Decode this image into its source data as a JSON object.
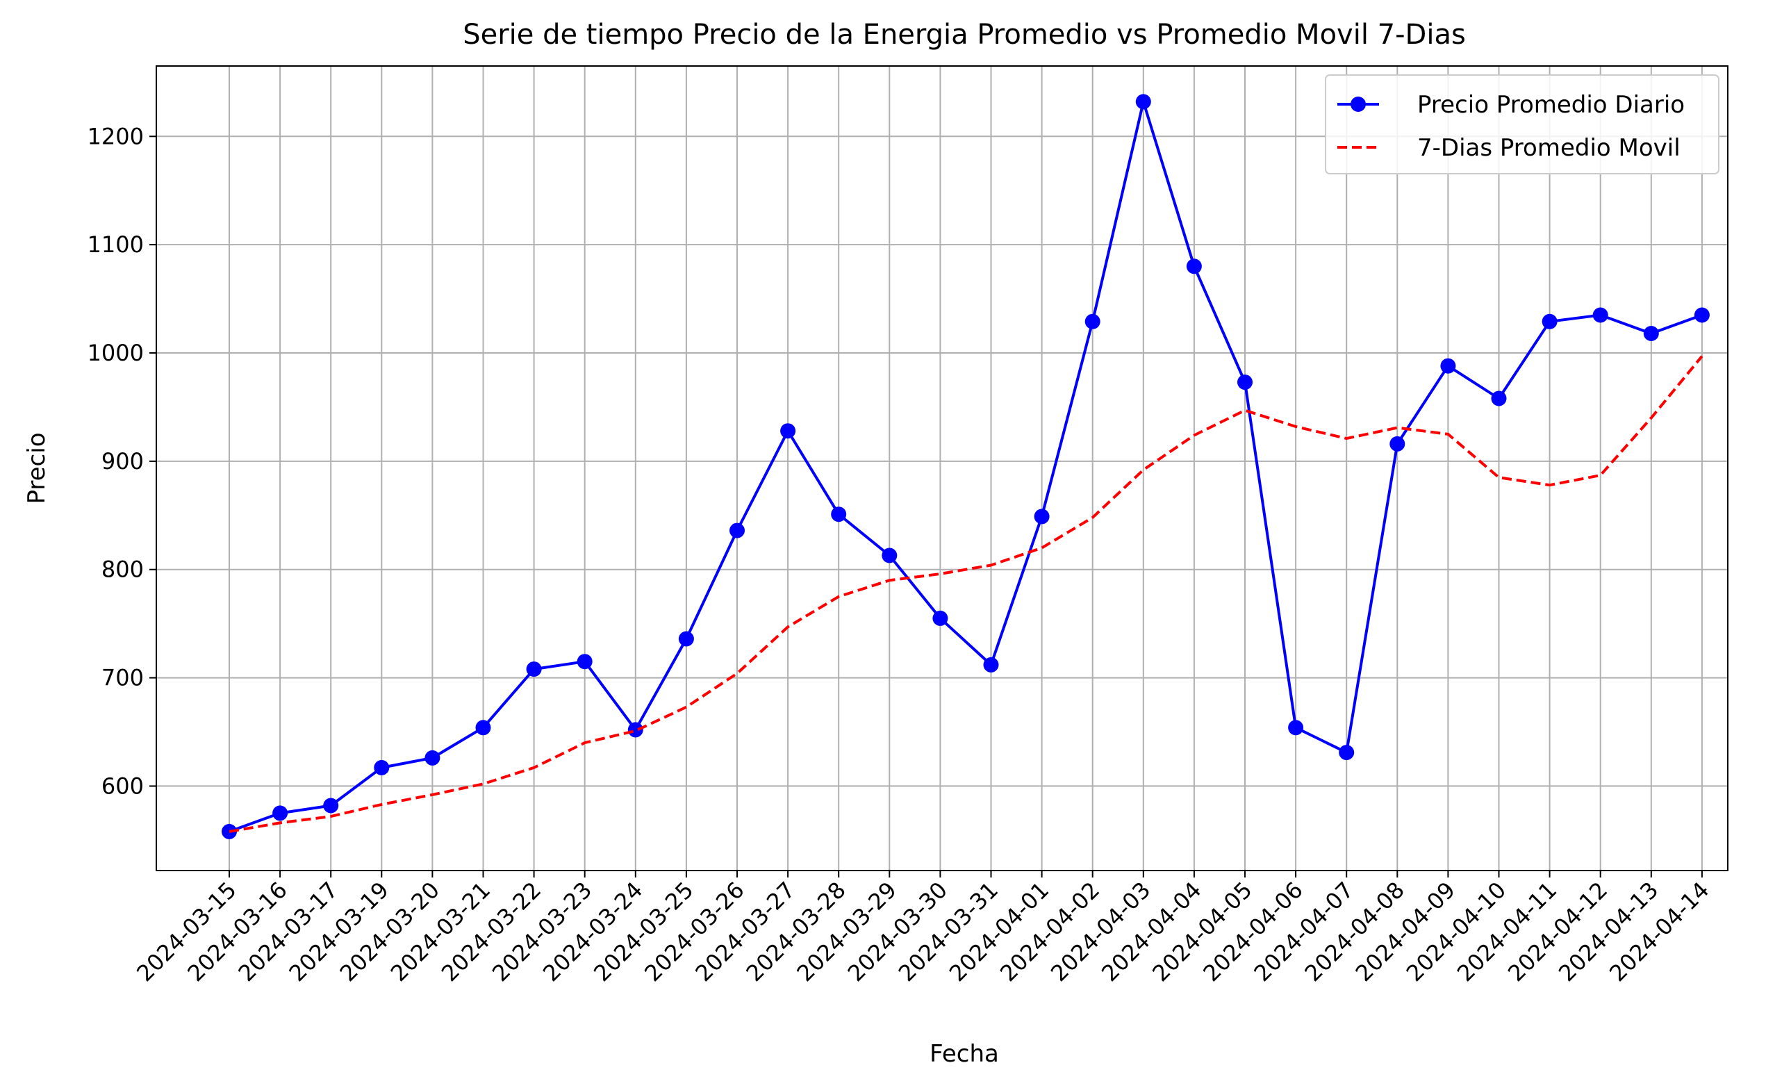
{
  "chart_data": {
    "type": "line",
    "title": "Serie de tiempo Precio de la Energia Promedio vs  Promedio Movil 7-Dias",
    "xlabel": "Fecha",
    "ylabel": "Precio",
    "ylim": [
      522,
      1265
    ],
    "yticks": [
      600,
      700,
      800,
      900,
      1000,
      1100,
      1200
    ],
    "grid": true,
    "legend_position": "top-right",
    "x": [
      "2024-03-15",
      "2024-03-16",
      "2024-03-17",
      "2024-03-19",
      "2024-03-20",
      "2024-03-21",
      "2024-03-22",
      "2024-03-23",
      "2024-03-24",
      "2024-03-25",
      "2024-03-26",
      "2024-03-27",
      "2024-03-28",
      "2024-03-29",
      "2024-03-30",
      "2024-03-31",
      "2024-04-01",
      "2024-04-02",
      "2024-04-03",
      "2024-04-04",
      "2024-04-05",
      "2024-04-06",
      "2024-04-07",
      "2024-04-08",
      "2024-04-09",
      "2024-04-10",
      "2024-04-11",
      "2024-04-12",
      "2024-04-13",
      "2024-04-14"
    ],
    "series": [
      {
        "name": "Precio Promedio Diario",
        "color": "#0000ff",
        "style": "solid-marker",
        "values": [
          558,
          575,
          582,
          617,
          626,
          654,
          708,
          715,
          652,
          736,
          836,
          928,
          851,
          813,
          755,
          712,
          849,
          1029,
          1232,
          1080,
          973,
          654,
          631,
          916,
          988,
          958,
          1029,
          1035,
          1018,
          1035
        ]
      },
      {
        "name": "7-Dias Promedio Movil",
        "color": "#ff0000",
        "style": "dashed",
        "values": [
          558,
          566,
          572,
          583,
          592,
          602,
          617,
          640,
          651,
          673,
          704,
          747,
          775,
          790,
          796,
          804,
          820,
          848,
          892,
          924,
          947,
          932,
          921,
          931,
          925,
          885,
          878,
          887,
          940,
          997
        ]
      }
    ]
  }
}
